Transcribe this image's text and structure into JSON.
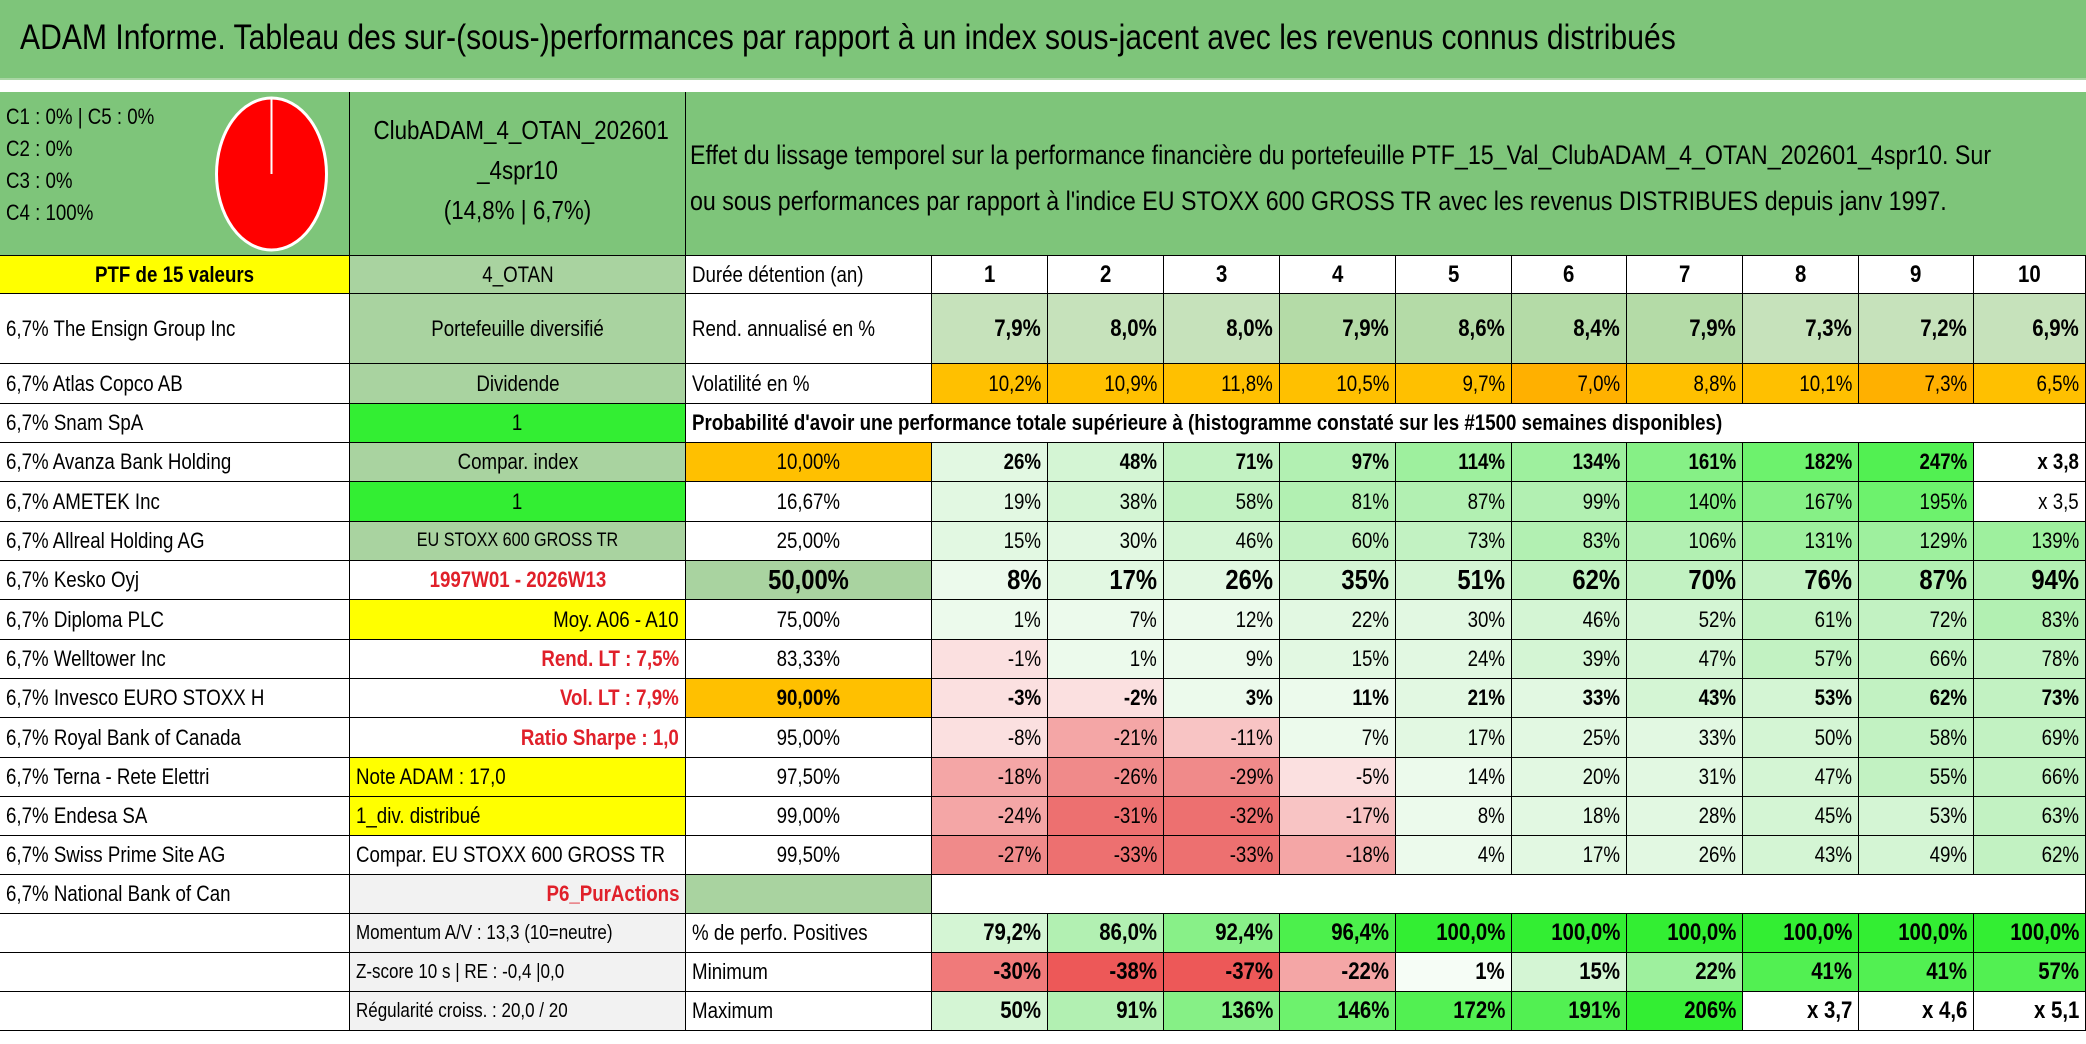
{
  "title": "ADAM Informe. Tableau des sur-(sous-)performances par rapport à un index sous-jacent avec les revenus connus distribués",
  "pie_legend": [
    "C1 : 0% | C5 : 0%",
    "C2 : 0%",
    "C3 : 0%",
    "C4 : 100%"
  ],
  "portfolio": {
    "name_line1": "ClubADAM_4_OTAN_202601",
    "name_line2": "_4spr10",
    "stats": "(14,8% | 6,7%)"
  },
  "description": [
    "Effet du lissage temporel sur la performance financière du portefeuille PTF_15_Val_ClubADAM_4_OTAN_202601_4spr10. Sur",
    "ou sous performances par rapport à l'indice EU STOXX 600 GROSS TR avec les revenus DISTRIBUES depuis janv 1997."
  ],
  "colA": [
    "PTF de 15 valeurs",
    "6,7% The Ensign Group Inc",
    "6,7% Atlas Copco AB",
    "6,7% Snam SpA",
    "6,7% Avanza Bank Holding",
    "6,7% AMETEK Inc",
    "6,7% Allreal Holding AG",
    "6,7% Kesko Oyj",
    "6,7% Diploma PLC",
    "6,7% Welltower Inc",
    "6,7% Invesco EURO STOXX H",
    "6,7% Royal Bank of Canada",
    "6,7% Terna - Rete Elettri",
    "6,7% Endesa SA",
    "6,7% Swiss Prime Site AG",
    "6,7% National Bank of Can",
    "",
    "",
    ""
  ],
  "colB": [
    "4_OTAN",
    "Portefeuille diversifié",
    "Dividende",
    "1",
    "Compar. index",
    "1",
    "EU STOXX 600 GROSS TR",
    "1997W01 - 2026W13",
    "Moy. A06 - A10",
    "Rend. LT : 7,5%",
    "Vol. LT : 7,9%",
    "Ratio Sharpe : 1,0",
    "Note ADAM : 17,0",
    "1_div. distribué",
    "Compar. EU STOXX 600 GROSS TR",
    "P6_PurActions",
    "Momentum A/V : 13,3 (10=neutre)",
    "Z-score 10 s | RE : -0,4 |0,0",
    "Régularité croiss. : 20,0 / 20"
  ],
  "colC": [
    "Durée détention (an)",
    "Rend. annualisé en %",
    "Volatilité en %",
    "Probabilité d'avoir une performance totale supérieure à (histogramme constaté sur les #1500 semaines disponibles)",
    "10,00%",
    "16,67%",
    "25,00%",
    "50,00%",
    "75,00%",
    "83,33%",
    "90,00%",
    "95,00%",
    "97,50%",
    "99,00%",
    "99,50%",
    "",
    "% de perfo. Positives",
    "Minimum",
    "Maximum"
  ],
  "years": [
    "1",
    "2",
    "3",
    "4",
    "5",
    "6",
    "7",
    "8",
    "9",
    "10"
  ],
  "grid": {
    "rend": [
      "7,9%",
      "8,0%",
      "8,0%",
      "7,9%",
      "8,6%",
      "8,4%",
      "7,9%",
      "7,3%",
      "7,2%",
      "6,9%"
    ],
    "vol": [
      "10,2%",
      "10,9%",
      "11,8%",
      "10,5%",
      "9,7%",
      "7,0%",
      "8,8%",
      "10,1%",
      "7,3%",
      "6,5%"
    ],
    "q10": [
      "26%",
      "48%",
      "71%",
      "97%",
      "114%",
      "134%",
      "161%",
      "182%",
      "247%",
      "x 3,8"
    ],
    "q16": [
      "19%",
      "38%",
      "58%",
      "81%",
      "87%",
      "99%",
      "140%",
      "167%",
      "195%",
      "x 3,5"
    ],
    "q25": [
      "15%",
      "30%",
      "46%",
      "60%",
      "73%",
      "83%",
      "106%",
      "131%",
      "129%",
      "139%"
    ],
    "q50": [
      "8%",
      "17%",
      "26%",
      "35%",
      "51%",
      "62%",
      "70%",
      "76%",
      "87%",
      "94%"
    ],
    "q75": [
      "1%",
      "7%",
      "12%",
      "22%",
      "30%",
      "46%",
      "52%",
      "61%",
      "72%",
      "83%"
    ],
    "q83": [
      "-1%",
      "1%",
      "9%",
      "15%",
      "24%",
      "39%",
      "47%",
      "57%",
      "66%",
      "78%"
    ],
    "q90": [
      "-3%",
      "-2%",
      "3%",
      "11%",
      "21%",
      "33%",
      "43%",
      "53%",
      "62%",
      "73%"
    ],
    "q95": [
      "-8%",
      "-21%",
      "-11%",
      "7%",
      "17%",
      "25%",
      "33%",
      "50%",
      "58%",
      "69%"
    ],
    "q97": [
      "-18%",
      "-26%",
      "-29%",
      "-5%",
      "14%",
      "20%",
      "31%",
      "47%",
      "55%",
      "66%"
    ],
    "q99": [
      "-24%",
      "-31%",
      "-32%",
      "-17%",
      "8%",
      "18%",
      "28%",
      "45%",
      "53%",
      "63%"
    ],
    "q995": [
      "-27%",
      "-33%",
      "-33%",
      "-18%",
      "4%",
      "17%",
      "26%",
      "43%",
      "49%",
      "62%"
    ],
    "pos": [
      "79,2%",
      "86,0%",
      "92,4%",
      "96,4%",
      "100,0%",
      "100,0%",
      "100,0%",
      "100,0%",
      "100,0%",
      "100,0%"
    ],
    "min": [
      "-30%",
      "-38%",
      "-37%",
      "-22%",
      "1%",
      "15%",
      "22%",
      "41%",
      "41%",
      "57%"
    ],
    "max": [
      "50%",
      "91%",
      "136%",
      "146%",
      "172%",
      "191%",
      "206%",
      "x 3,7",
      "x 4,6",
      "x 5,1"
    ]
  },
  "chart_data": {
    "type": "pie",
    "categories": [
      "C1",
      "C2",
      "C3",
      "C4",
      "C5"
    ],
    "values": [
      0,
      0,
      0,
      100,
      0
    ],
    "colors": [
      "#6aa84f",
      "#3c78d8",
      "#f1c232",
      "#ff0000",
      "#999999"
    ]
  }
}
